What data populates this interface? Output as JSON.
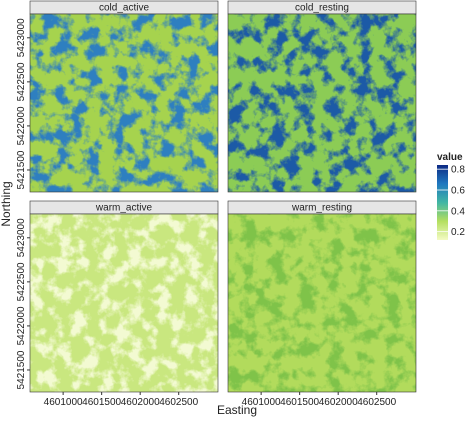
{
  "chart_data": {
    "type": "raster",
    "xlabel": "Easting",
    "ylabel": "Northing",
    "xlim": [
      4600570,
      4603010
    ],
    "ylim": [
      5421250,
      5423270
    ],
    "xticks": [
      4601000,
      4601500,
      4602000,
      4602500
    ],
    "yticks": [
      5421500,
      5422000,
      5422500,
      5423000
    ],
    "facets": [
      {
        "title": "cold_active",
        "colors": [
          "#a6d34e",
          "#2f7fc0"
        ]
      },
      {
        "title": "cold_resting",
        "colors": [
          "#8ccc55",
          "#1d5aa6"
        ]
      },
      {
        "title": "warm_active",
        "colors": [
          "#c9e77f",
          "#f3fad2"
        ]
      },
      {
        "title": "warm_resting",
        "colors": [
          "#b2db5c",
          "#7fc34a"
        ]
      }
    ],
    "legend": {
      "title": "value",
      "lim": [
        0.12,
        0.84
      ],
      "ticks": [
        0.2,
        0.4,
        0.6,
        0.8
      ],
      "colors": [
        "#f4fbc4",
        "#b4df5f",
        "#41b6a4",
        "#1f78c0",
        "#0c2a84"
      ]
    }
  }
}
